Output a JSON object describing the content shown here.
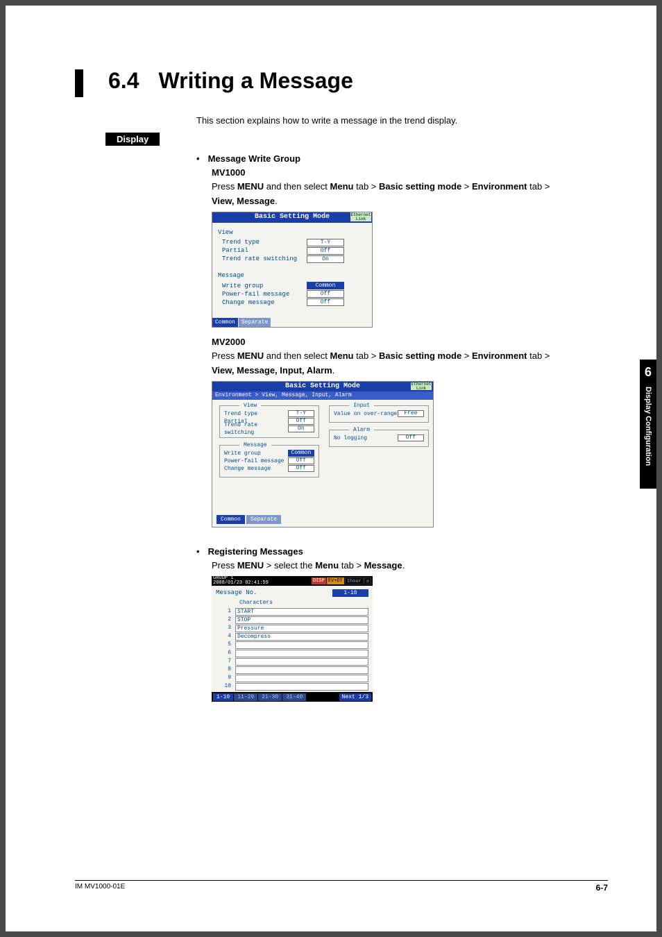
{
  "page": {
    "section_number": "6.4",
    "section_title": "Writing a Message",
    "intro": "This section explains how to write a message in the trend display.",
    "display_label": "Display",
    "bullet1_title": "Message Write Group",
    "mv1000_label": "MV1000",
    "mv1000_instr_pre": "Press ",
    "menu_caps": "MENU",
    "and_then_select": " and then select ",
    "menu_word": "Menu",
    "tab_gt": " tab > ",
    "basic_mode": "Basic setting mode",
    "gt": " > ",
    "env_word": "Environment",
    "mv1000_path_tail": "View, Message",
    "mv2000_label": "MV2000",
    "mv2000_path_tail": "View, Message, Input, Alarm",
    "bullet2_title": "Registering Messages",
    "reg_instr_pre": "Press ",
    "reg_select": " > select the ",
    "message_word": "Message",
    "footer_doc": "IM MV1000-01E",
    "footer_page": "6-7",
    "side_num": "6",
    "side_text": "Display Configuration"
  },
  "ss1": {
    "title": "Basic Setting Mode",
    "eth": "Ethernet\nLink",
    "view_label": "View",
    "rows_view": [
      {
        "lbl": "Trend type",
        "val": "T-Y"
      },
      {
        "lbl": "Partial",
        "val": "Off"
      },
      {
        "lbl": "Trend rate switching",
        "val": "On"
      }
    ],
    "msg_label": "Message",
    "rows_msg": [
      {
        "lbl": "Write group",
        "val": "Common",
        "sel": true
      },
      {
        "lbl": "Power-fail message",
        "val": "Off"
      },
      {
        "lbl": "Change message",
        "val": "Off"
      }
    ],
    "foot": [
      "Common",
      "Separate"
    ]
  },
  "ss2": {
    "title": "Basic Setting Mode",
    "breadcrumb": "Environment > View, Message, Input, Alarm",
    "eth": "Ethernet\nLink",
    "groups_left": [
      {
        "title": "View",
        "rows": [
          {
            "lbl": "Trend type",
            "val": "T-Y"
          },
          {
            "lbl": "Partial",
            "val": "Off"
          },
          {
            "lbl": "Trend rate switching",
            "val": "On"
          }
        ]
      },
      {
        "title": "Message",
        "rows": [
          {
            "lbl": "Write group",
            "val": "Common",
            "sel": true
          },
          {
            "lbl": "Power-fail message",
            "val": "Off"
          },
          {
            "lbl": "Change message",
            "val": "Off"
          }
        ]
      }
    ],
    "groups_right": [
      {
        "title": "Input",
        "rows": [
          {
            "lbl": "Value on over-range",
            "val": "Free"
          }
        ]
      },
      {
        "title": "Alarm",
        "rows": [
          {
            "lbl": "No logging",
            "val": "Off"
          }
        ]
      }
    ],
    "foot": [
      "Common",
      "Separate"
    ]
  },
  "ss3": {
    "group": "GROUP 1",
    "timestamp": "2008/01/23 02:41:59",
    "badges": [
      "DISP",
      "EV+DT",
      "1hour"
    ],
    "msg_no_label": "Message No.",
    "msg_no_val": "1-10",
    "col_hdr": "Characters",
    "rows": [
      {
        "n": "1",
        "v": "START"
      },
      {
        "n": "2",
        "v": "STOP"
      },
      {
        "n": "3",
        "v": "Pressure"
      },
      {
        "n": "4",
        "v": "Decompress"
      },
      {
        "n": "5",
        "v": ""
      },
      {
        "n": "6",
        "v": ""
      },
      {
        "n": "7",
        "v": ""
      },
      {
        "n": "8",
        "v": ""
      },
      {
        "n": "9",
        "v": ""
      },
      {
        "n": "10",
        "v": ""
      }
    ],
    "foot_tabs": [
      "1-10",
      "11-20",
      "21-30",
      "31-40"
    ],
    "next": "Next 1/3"
  }
}
